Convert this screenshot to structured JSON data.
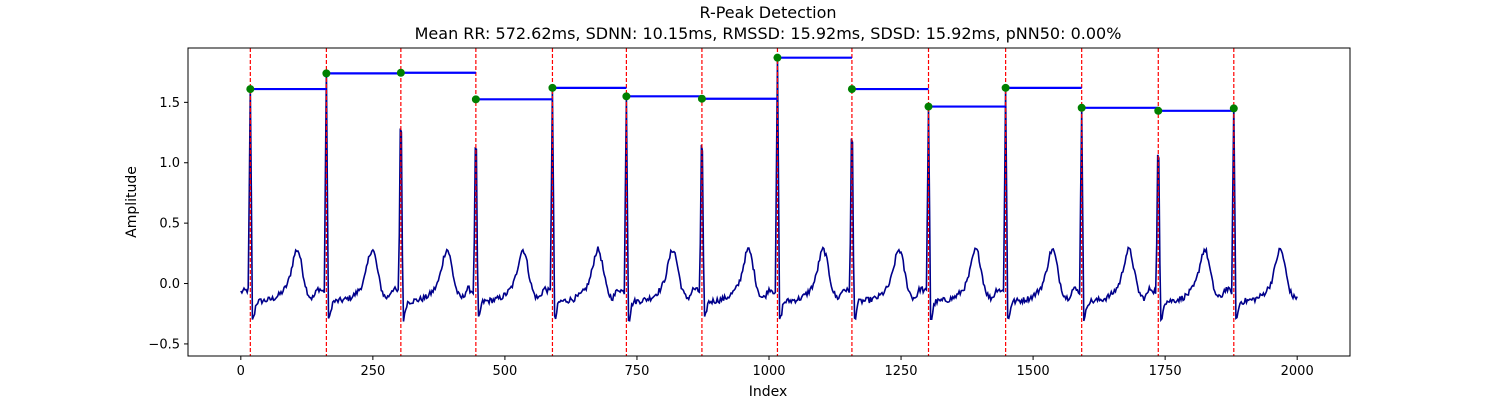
{
  "chart_data": {
    "type": "line",
    "title": "R-Peak Detection",
    "subtitle": "Mean RR: 572.62ms, SDNN: 10.15ms, RMSSD: 15.92ms, SDSD: 15.92ms, pNN50: 0.00%",
    "xlabel": "Index",
    "ylabel": "Amplitude",
    "xlim": [
      -100,
      2100
    ],
    "ylim": [
      -0.6,
      1.95
    ],
    "xticks": [
      0,
      250,
      500,
      750,
      1000,
      1250,
      1500,
      1750,
      2000
    ],
    "yticks": [
      -0.5,
      0.0,
      0.5,
      1.0,
      1.5
    ],
    "grid": false,
    "peaks": {
      "x": [
        18,
        162,
        303,
        445,
        590,
        730,
        873,
        1016,
        1157,
        1302,
        1448,
        1592,
        1737,
        1880
      ],
      "y": [
        1.61,
        1.74,
        1.745,
        1.525,
        1.62,
        1.55,
        1.53,
        1.87,
        1.61,
        1.465,
        1.62,
        1.455,
        1.43,
        1.45
      ]
    },
    "ecg_signal": {
      "x_start": 0,
      "x_end": 2000,
      "baseline_profile": [
        [
          0,
          -0.07
        ],
        [
          8,
          -0.05
        ],
        [
          12,
          0.0
        ],
        [
          15,
          0.3
        ]
      ]
    },
    "colors": {
      "signal": "#00008b",
      "peak_line": "#ff0000",
      "peak_marker": "#008000",
      "rr_segment": "#0000ff"
    }
  }
}
